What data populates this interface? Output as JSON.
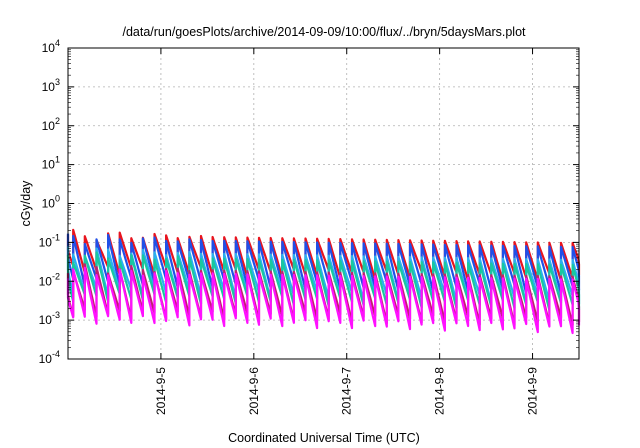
{
  "chart_data": {
    "type": "line",
    "title": "/data/run/goesPlots/archive/2014-09-09/10:00/flux/../bryn/5daysMars.plot",
    "xlabel": "Coordinated Universal Time (UTC)",
    "ylabel": "cGy/day",
    "y_scale": "log",
    "ylim": [
      0.0001,
      10000
    ],
    "y_ticks": [
      {
        "base": "10",
        "exp": "-4"
      },
      {
        "base": "10",
        "exp": "-3"
      },
      {
        "base": "10",
        "exp": "-2"
      },
      {
        "base": "10",
        "exp": "-1"
      },
      {
        "base": "10",
        "exp": "0"
      },
      {
        "base": "10",
        "exp": "1"
      },
      {
        "base": "10",
        "exp": "2"
      },
      {
        "base": "10",
        "exp": "3"
      },
      {
        "base": "10",
        "exp": "4"
      }
    ],
    "xlim": [
      "2014-09-04T00:00",
      "2014-09-09T12:00"
    ],
    "x_ticks": [
      "2014-9-5",
      "2014-9-6",
      "2014-9-7",
      "2014-9-8",
      "2014-9-9"
    ],
    "grid": true,
    "legend": "none",
    "cycle_hours": 3,
    "series": [
      {
        "color": "#e8141e",
        "peak_start": 0.16,
        "peak_end": 0.095,
        "trough_start": 0.02,
        "trough_end": 0.012
      },
      {
        "color": "#2050e8",
        "peak_start": 0.13,
        "peak_end": 0.075,
        "trough_start": 0.01,
        "trough_end": 0.006
      },
      {
        "color": "#2ab0f0",
        "peak_start": 0.06,
        "peak_end": 0.035,
        "trough_start": 0.0055,
        "trough_end": 0.0033
      },
      {
        "color": "#18c8a0",
        "peak_start": 0.045,
        "peak_end": 0.026,
        "trough_start": 0.004,
        "trough_end": 0.0023
      },
      {
        "color": "#c02070",
        "peak_start": 0.022,
        "peak_end": 0.013,
        "trough_start": 0.0015,
        "trough_end": 0.0009
      },
      {
        "color": "#ff10ff",
        "peak_start": 0.018,
        "peak_end": 0.011,
        "trough_start": 0.0011,
        "trough_end": 0.0006
      }
    ]
  }
}
